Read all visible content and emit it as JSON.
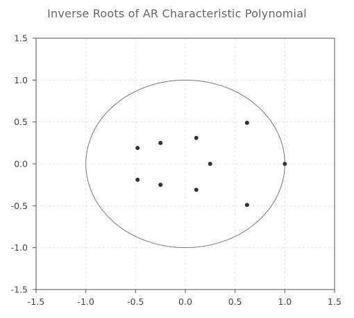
{
  "chart_data": {
    "type": "scatter",
    "title": "Inverse Roots of AR Characteristic Polynomial",
    "xlabel": "",
    "ylabel": "",
    "xlim": [
      -1.5,
      1.5
    ],
    "ylim": [
      -1.5,
      1.5
    ],
    "x_ticks": [
      "-1.5",
      "-1.0",
      "-0.5",
      "0.0",
      "0.5",
      "1.0",
      "1.5"
    ],
    "y_ticks": [
      "1.5",
      "1.0",
      "0.5",
      "0.0",
      "-0.5",
      "-1.0",
      "-1.5"
    ],
    "grid": true,
    "unit_circle": {
      "radius": 1.0,
      "color": "#777777"
    },
    "point_color": "#333333",
    "points": [
      {
        "x": 1.0,
        "y": 0.0
      },
      {
        "x": 0.62,
        "y": 0.49
      },
      {
        "x": 0.62,
        "y": -0.49
      },
      {
        "x": 0.25,
        "y": 0.0
      },
      {
        "x": 0.11,
        "y": 0.31
      },
      {
        "x": 0.11,
        "y": -0.31
      },
      {
        "x": -0.25,
        "y": 0.25
      },
      {
        "x": -0.25,
        "y": -0.25
      },
      {
        "x": -0.48,
        "y": 0.19
      },
      {
        "x": -0.48,
        "y": -0.19
      }
    ]
  }
}
